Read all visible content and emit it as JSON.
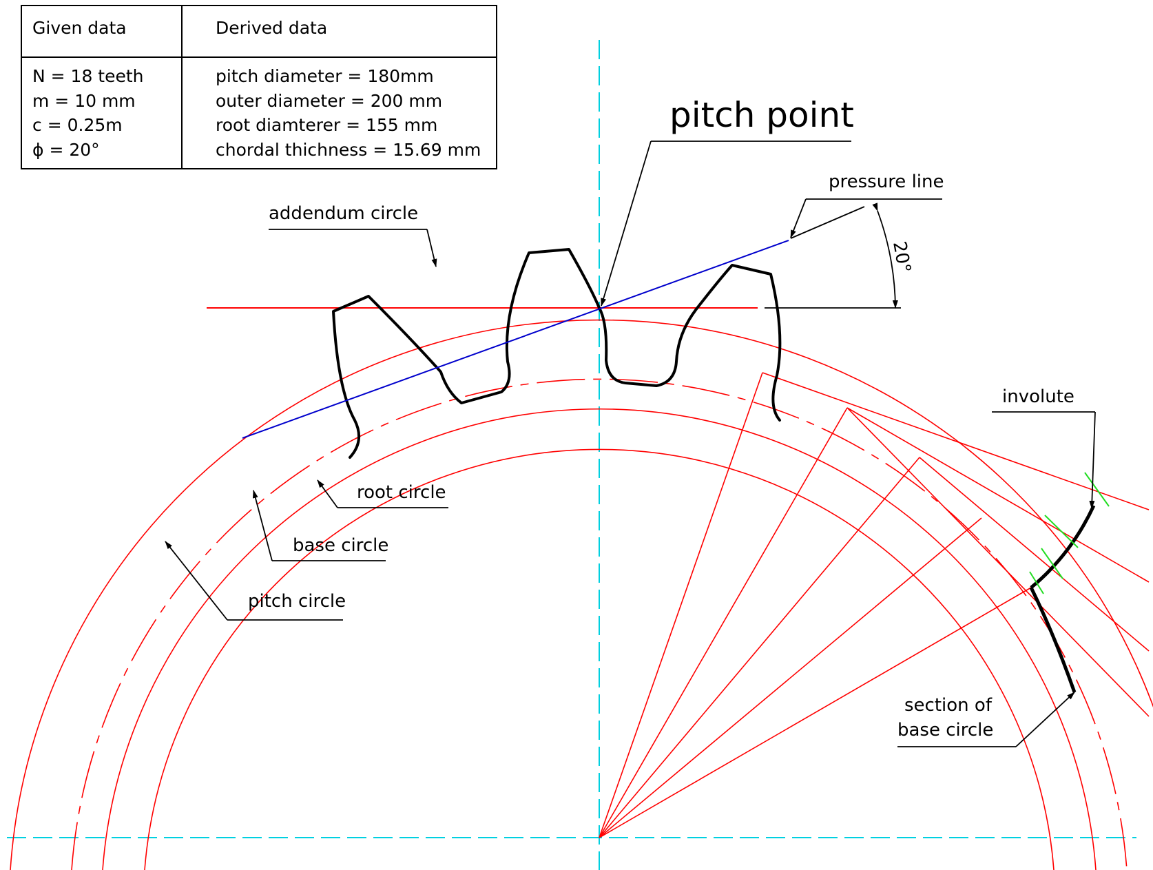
{
  "table": {
    "given_header": "Given data",
    "derived_header": "Derived data",
    "given": [
      "N = 18 teeth",
      "m = 10 mm",
      "c = 0.25m",
      "ϕ = 20°"
    ],
    "derived": [
      "pitch diameter = 180mm",
      "outer diameter = 200 mm",
      "root diamterer = 155 mm",
      "chordal thichness = 15.69 mm"
    ]
  },
  "labels": {
    "pitch_point": "pitch point",
    "pressure_line": "pressure line",
    "angle": "20°",
    "addendum_circle": "addendum circle",
    "root_circle": "root circle",
    "base_circle": "base circle",
    "pitch_circle": "pitch circle",
    "involute": "involute",
    "section_of_base_circle_1": "section of",
    "section_of_base_circle_2": "base circle"
  },
  "colors": {
    "construction": "#ff0000",
    "centerline": "#00d0e0",
    "pressure_line": "#0000cc",
    "profile": "#000000",
    "tick": "#22dd22"
  }
}
